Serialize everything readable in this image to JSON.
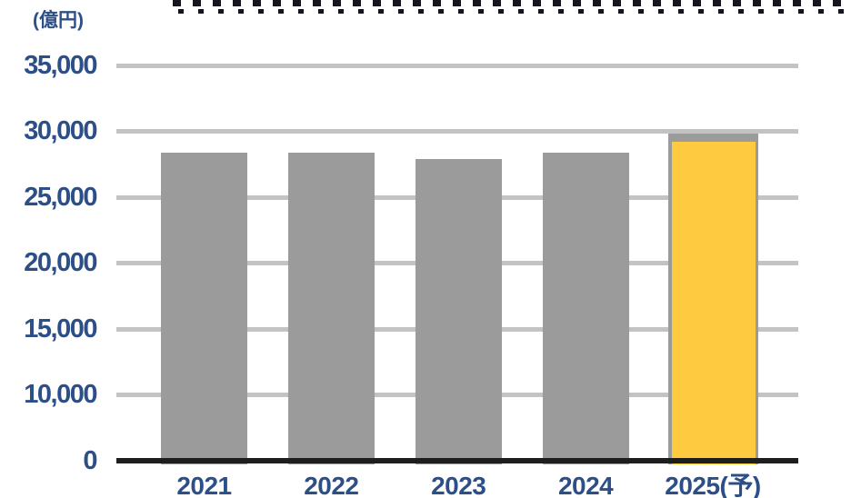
{
  "unit_label": "(億円)",
  "colors": {
    "bar_gray": "#9B9B9B",
    "bar_yellow": "#FDCA40",
    "gridline": "#C3C3C3",
    "baseline": "#1E1E1E",
    "label_blue": "#2D4F87",
    "top_dashes": "#15151D"
  },
  "chart_data": {
    "type": "bar",
    "title": "",
    "unit": "(億円)",
    "categories": [
      "2021",
      "2022",
      "2023",
      "2024",
      "2025(予)"
    ],
    "series": [
      {
        "name": "gray",
        "color": "#9B9B9B",
        "values": [
          28400,
          28400,
          27900,
          28400,
          29800
        ]
      },
      {
        "name": "yellow-highlight",
        "color": "#FDCA40",
        "values": [
          null,
          null,
          null,
          null,
          29200
        ]
      }
    ],
    "yticks": [
      0,
      10000,
      15000,
      20000,
      25000,
      30000,
      35000
    ],
    "ytick_labels": [
      "0",
      "10,000",
      "15,000",
      "20,000",
      "25,000",
      "30,000",
      "35,000"
    ],
    "ylim": [
      0,
      35000
    ],
    "grid": true,
    "legend": "none",
    "axis_note": "tick spacing is uniform per step; the 0 to 10,000 interval occupies a single step (compressed axis)"
  }
}
